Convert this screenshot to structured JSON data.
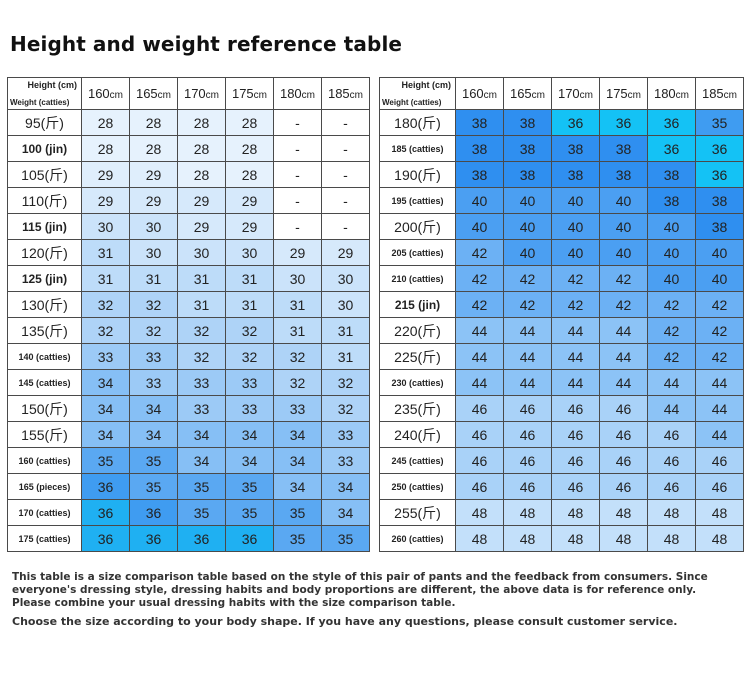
{
  "title": "Height and weight reference table",
  "header": {
    "height_label": "Height (cm)",
    "weight_label": "Weight (catties)",
    "heights": [
      "160",
      "165",
      "170",
      "175",
      "180",
      "185"
    ],
    "unit": "cm"
  },
  "left_table": {
    "rows": [
      {
        "weight": "95(斤)",
        "values": [
          "28",
          "28",
          "28",
          "28",
          "-",
          "-"
        ]
      },
      {
        "weight": "100 (jin)",
        "values": [
          "28",
          "28",
          "28",
          "28",
          "-",
          "-"
        ]
      },
      {
        "weight": "105(斤)",
        "values": [
          "29",
          "29",
          "28",
          "28",
          "-",
          "-"
        ]
      },
      {
        "weight": "110(斤)",
        "values": [
          "29",
          "29",
          "29",
          "29",
          "-",
          "-"
        ]
      },
      {
        "weight": "115 (jin)",
        "values": [
          "30",
          "30",
          "29",
          "29",
          "-",
          "-"
        ]
      },
      {
        "weight": "120(斤)",
        "values": [
          "31",
          "30",
          "30",
          "30",
          "29",
          "29"
        ]
      },
      {
        "weight": "125 (jin)",
        "values": [
          "31",
          "31",
          "31",
          "31",
          "30",
          "30"
        ]
      },
      {
        "weight": "130(斤)",
        "values": [
          "32",
          "32",
          "31",
          "31",
          "31",
          "30"
        ]
      },
      {
        "weight": "135(斤)",
        "values": [
          "32",
          "32",
          "32",
          "32",
          "31",
          "31"
        ]
      },
      {
        "weight": "140 (catties)",
        "values": [
          "33",
          "33",
          "32",
          "32",
          "32",
          "31"
        ]
      },
      {
        "weight": "145 (catties)",
        "values": [
          "34",
          "33",
          "33",
          "33",
          "32",
          "32"
        ]
      },
      {
        "weight": "150(斤)",
        "values": [
          "34",
          "34",
          "33",
          "33",
          "33",
          "32"
        ]
      },
      {
        "weight": "155(斤)",
        "values": [
          "34",
          "34",
          "34",
          "34",
          "34",
          "33"
        ]
      },
      {
        "weight": "160 (catties)",
        "values": [
          "35",
          "35",
          "34",
          "34",
          "34",
          "33"
        ]
      },
      {
        "weight": "165 (pieces)",
        "values": [
          "36",
          "35",
          "35",
          "35",
          "34",
          "34"
        ]
      },
      {
        "weight": "170 (catties)",
        "values": [
          "36",
          "36",
          "35",
          "35",
          "35",
          "34"
        ]
      },
      {
        "weight": "175 (catties)",
        "values": [
          "36",
          "36",
          "36",
          "36",
          "35",
          "35"
        ]
      }
    ],
    "colors": [
      [
        "#e6f2fd",
        "#e6f2fd",
        "#e6f2fd",
        "#e6f2fd",
        "#ffffff",
        "#ffffff"
      ],
      [
        "#e6f2fd",
        "#e6f2fd",
        "#e6f2fd",
        "#e6f2fd",
        "#ffffff",
        "#ffffff"
      ],
      [
        "#dfeefc",
        "#dfeefc",
        "#e6f2fd",
        "#e6f2fd",
        "#ffffff",
        "#ffffff"
      ],
      [
        "#d6e9fb",
        "#d6e9fb",
        "#d6e9fb",
        "#d6e9fb",
        "#ffffff",
        "#ffffff"
      ],
      [
        "#cbe3fa",
        "#cbe3fa",
        "#d6e9fb",
        "#d6e9fb",
        "#ffffff",
        "#ffffff"
      ],
      [
        "#bddcf9",
        "#cbe3fa",
        "#cbe3fa",
        "#cbe3fa",
        "#d6e9fb",
        "#d6e9fb"
      ],
      [
        "#bddcf9",
        "#bddcf9",
        "#bddcf9",
        "#bddcf9",
        "#cbe3fa",
        "#cbe3fa"
      ],
      [
        "#aed3f7",
        "#aed3f7",
        "#bddcf9",
        "#bddcf9",
        "#bddcf9",
        "#cbe3fa"
      ],
      [
        "#aed3f7",
        "#aed3f7",
        "#aed3f7",
        "#aed3f7",
        "#bddcf9",
        "#bddcf9"
      ],
      [
        "#9ccaf6",
        "#9ccaf6",
        "#aed3f7",
        "#aed3f7",
        "#aed3f7",
        "#bddcf9"
      ],
      [
        "#86bff5",
        "#9ccaf6",
        "#9ccaf6",
        "#9ccaf6",
        "#aed3f7",
        "#aed3f7"
      ],
      [
        "#86bff5",
        "#86bff5",
        "#9ccaf6",
        "#9ccaf6",
        "#9ccaf6",
        "#aed3f7"
      ],
      [
        "#86bff5",
        "#86bff5",
        "#86bff5",
        "#86bff5",
        "#86bff5",
        "#9ccaf6"
      ],
      [
        "#5aa8f2",
        "#5aa8f2",
        "#86bff5",
        "#86bff5",
        "#86bff5",
        "#9ccaf6"
      ],
      [
        "#3f9cf1",
        "#5aa8f2",
        "#5aa8f2",
        "#5aa8f2",
        "#86bff5",
        "#86bff5"
      ],
      [
        "#1fb0f2",
        "#3f9cf1",
        "#5aa8f2",
        "#5aa8f2",
        "#5aa8f2",
        "#86bff5"
      ],
      [
        "#1fb0f2",
        "#1fb0f2",
        "#1fb0f2",
        "#1fb0f2",
        "#5aa8f2",
        "#5aa8f2"
      ]
    ]
  },
  "right_table": {
    "rows": [
      {
        "weight": "180(斤)",
        "values": [
          "38",
          "38",
          "36",
          "36",
          "36",
          "35"
        ]
      },
      {
        "weight": "185 (catties)",
        "values": [
          "38",
          "38",
          "38",
          "38",
          "36",
          "36"
        ]
      },
      {
        "weight": "190(斤)",
        "values": [
          "38",
          "38",
          "38",
          "38",
          "38",
          "36"
        ]
      },
      {
        "weight": "195 (catties)",
        "values": [
          "40",
          "40",
          "40",
          "40",
          "38",
          "38"
        ]
      },
      {
        "weight": "200(斤)",
        "values": [
          "40",
          "40",
          "40",
          "40",
          "40",
          "38"
        ]
      },
      {
        "weight": "205 (catties)",
        "values": [
          "42",
          "40",
          "40",
          "40",
          "40",
          "40"
        ]
      },
      {
        "weight": "210 (catties)",
        "values": [
          "42",
          "42",
          "42",
          "42",
          "40",
          "40"
        ]
      },
      {
        "weight": "215 (jin)",
        "values": [
          "42",
          "42",
          "42",
          "42",
          "42",
          "42"
        ]
      },
      {
        "weight": "220(斤)",
        "values": [
          "44",
          "44",
          "44",
          "44",
          "42",
          "42"
        ]
      },
      {
        "weight": "225(斤)",
        "values": [
          "44",
          "44",
          "44",
          "44",
          "42",
          "42"
        ]
      },
      {
        "weight": "230 (catties)",
        "values": [
          "44",
          "44",
          "44",
          "44",
          "44",
          "44"
        ]
      },
      {
        "weight": "235(斤)",
        "values": [
          "46",
          "46",
          "46",
          "46",
          "44",
          "44"
        ]
      },
      {
        "weight": "240(斤)",
        "values": [
          "46",
          "46",
          "46",
          "46",
          "46",
          "44"
        ]
      },
      {
        "weight": "245 (catties)",
        "values": [
          "46",
          "46",
          "46",
          "46",
          "46",
          "46"
        ]
      },
      {
        "weight": "250 (catties)",
        "values": [
          "46",
          "46",
          "46",
          "46",
          "46",
          "46"
        ]
      },
      {
        "weight": "255(斤)",
        "values": [
          "48",
          "48",
          "48",
          "48",
          "48",
          "48"
        ]
      },
      {
        "weight": "260 (catties)",
        "values": [
          "48",
          "48",
          "48",
          "48",
          "48",
          "48"
        ]
      }
    ],
    "colors": [
      [
        "#2f8ff0",
        "#2f8ff0",
        "#14c2f5",
        "#14c2f5",
        "#14c2f5",
        "#3f9cf1"
      ],
      [
        "#2f8ff0",
        "#2f8ff0",
        "#2f8ff0",
        "#2f8ff0",
        "#14c2f5",
        "#14c2f5"
      ],
      [
        "#2f8ff0",
        "#2f8ff0",
        "#2f8ff0",
        "#2f8ff0",
        "#2f8ff0",
        "#14c2f5"
      ],
      [
        "#4b9ff2",
        "#4b9ff2",
        "#4b9ff2",
        "#4b9ff2",
        "#2f8ff0",
        "#2f8ff0"
      ],
      [
        "#4b9ff2",
        "#4b9ff2",
        "#4b9ff2",
        "#4b9ff2",
        "#4b9ff2",
        "#2f8ff0"
      ],
      [
        "#6cb1f4",
        "#4b9ff2",
        "#4b9ff2",
        "#4b9ff2",
        "#4b9ff2",
        "#4b9ff2"
      ],
      [
        "#6cb1f4",
        "#6cb1f4",
        "#6cb1f4",
        "#6cb1f4",
        "#4b9ff2",
        "#4b9ff2"
      ],
      [
        "#6cb1f4",
        "#6cb1f4",
        "#6cb1f4",
        "#6cb1f4",
        "#6cb1f4",
        "#6cb1f4"
      ],
      [
        "#8cc3f6",
        "#8cc3f6",
        "#8cc3f6",
        "#8cc3f6",
        "#6cb1f4",
        "#6cb1f4"
      ],
      [
        "#8cc3f6",
        "#8cc3f6",
        "#8cc3f6",
        "#8cc3f6",
        "#6cb1f4",
        "#6cb1f4"
      ],
      [
        "#8cc3f6",
        "#8cc3f6",
        "#8cc3f6",
        "#8cc3f6",
        "#8cc3f6",
        "#8cc3f6"
      ],
      [
        "#a9d2f8",
        "#a9d2f8",
        "#a9d2f8",
        "#a9d2f8",
        "#8cc3f6",
        "#8cc3f6"
      ],
      [
        "#a9d2f8",
        "#a9d2f8",
        "#a9d2f8",
        "#a9d2f8",
        "#a9d2f8",
        "#8cc3f6"
      ],
      [
        "#a9d2f8",
        "#a9d2f8",
        "#a9d2f8",
        "#a9d2f8",
        "#a9d2f8",
        "#a9d2f8"
      ],
      [
        "#a9d2f8",
        "#a9d2f8",
        "#a9d2f8",
        "#a9d2f8",
        "#a9d2f8",
        "#a9d2f8"
      ],
      [
        "#c3e0fa",
        "#c3e0fa",
        "#c3e0fa",
        "#c3e0fa",
        "#c3e0fa",
        "#c3e0fa"
      ],
      [
        "#c3e0fa",
        "#c3e0fa",
        "#c3e0fa",
        "#c3e0fa",
        "#c3e0fa",
        "#c3e0fa"
      ]
    ]
  },
  "notes": {
    "line1": "This table is a size comparison table based on the style of this pair of pants and the feedback from consumers. Since everyone's dressing style, dressing habits and body proportions are different, the above data is for reference only. Please combine your usual dressing habits with the size comparison table.",
    "line2": "Choose the size according to your body shape. If you have any questions, please consult customer service."
  }
}
